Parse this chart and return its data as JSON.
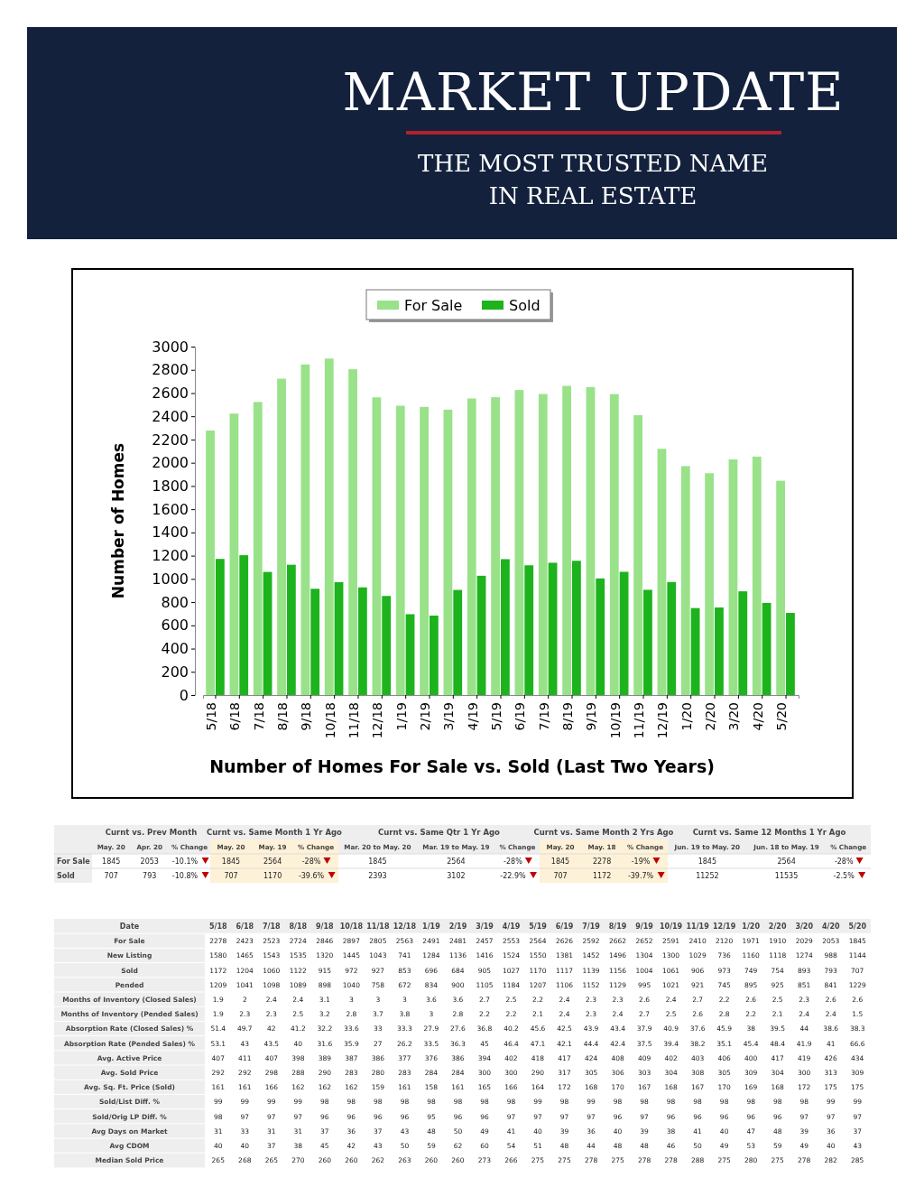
{
  "chart_data": [
    {
      "type": "other",
      "title": "MARKET UPDATE",
      "subtitle": "THE MOST TRUSTED NAME IN REAL ESTATE"
    },
    {
      "type": "bar",
      "title": "Number of Homes For Sale vs. Sold (Last Two Years)",
      "ylabel": "Number of Homes",
      "categories": [
        "5/18",
        "6/18",
        "7/18",
        "8/18",
        "9/18",
        "10/18",
        "11/18",
        "12/18",
        "1/19",
        "2/19",
        "3/19",
        "4/19",
        "5/19",
        "6/19",
        "7/19",
        "8/19",
        "9/19",
        "10/19",
        "11/19",
        "12/19",
        "1/20",
        "2/20",
        "3/20",
        "4/20",
        "5/20"
      ],
      "series": [
        {
          "name": "For Sale",
          "color": "#99e28a",
          "values": [
            2278,
            2423,
            2523,
            2724,
            2846,
            2897,
            2805,
            2563,
            2491,
            2481,
            2457,
            2553,
            2564,
            2626,
            2592,
            2662,
            2652,
            2591,
            2410,
            2120,
            1971,
            1910,
            2029,
            2053,
            1845
          ]
        },
        {
          "name": "Sold",
          "color": "#1db31d",
          "values": [
            1172,
            1204,
            1060,
            1122,
            915,
            972,
            927,
            853,
            696,
            684,
            905,
            1027,
            1170,
            1117,
            1139,
            1156,
            1004,
            1061,
            906,
            973,
            749,
            754,
            893,
            793,
            707
          ]
        }
      ],
      "ylim": [
        0,
        3000
      ],
      "yticks": [
        0,
        200,
        400,
        600,
        800,
        1000,
        1200,
        1400,
        1600,
        1800,
        2000,
        2200,
        2400,
        2600,
        2800,
        3000
      ],
      "legend": "top"
    },
    {
      "type": "other",
      "categories": [
        "May. 20",
        "Apr. 20",
        "% Change",
        "May. 20",
        "May. 19",
        "% Change",
        "Mar. 20 to May. 20",
        "Mar. 19 to May. 19",
        "% Change",
        "May. 20",
        "May. 18",
        "% Change",
        "Jun. 19 to May. 20",
        "Jun. 18 to May. 19",
        "% Change"
      ],
      "annotations": [
        "Curnt vs. Prev Month",
        "Curnt vs. Same Month 1 Yr Ago",
        "Curnt vs. Same Qtr 1 Yr Ago",
        "Curnt vs. Same Month 2 Yrs Ago",
        "Curnt vs. Same 12 Months 1 Yr Ago"
      ],
      "series": [
        {
          "name": "For Sale",
          "values": [
            1845,
            2053,
            -10.1,
            1845,
            2564,
            -28,
            1845,
            2564,
            -28,
            1845,
            2278,
            -19,
            1845,
            2564,
            -28
          ],
          "value_labels": [
            "1845",
            "2053",
            "-10.1%",
            "1845",
            "2564",
            "-28%",
            "1845",
            "2564",
            "-28%",
            "1845",
            "2278",
            "-19%",
            "1845",
            "2564",
            "-28%"
          ]
        },
        {
          "name": "Sold",
          "values": [
            707,
            793,
            -10.8,
            707,
            1170,
            -39.6,
            2393,
            3102,
            -22.9,
            707,
            1172,
            -39.7,
            11252,
            11535,
            -2.5
          ],
          "value_labels": [
            "707",
            "793",
            "-10.8%",
            "707",
            "1170",
            "-39.6%",
            "2393",
            "3102",
            "-22.9%",
            "707",
            "1172",
            "-39.7%",
            "11252",
            "11535",
            "-2.5%"
          ]
        }
      ]
    },
    {
      "type": "other",
      "xlabel": "Date",
      "data_labels": true,
      "categories": [
        "5/18",
        "6/18",
        "7/18",
        "8/18",
        "9/18",
        "10/18",
        "11/18",
        "12/18",
        "1/19",
        "2/19",
        "3/19",
        "4/19",
        "5/19",
        "6/19",
        "7/19",
        "8/19",
        "9/19",
        "10/19",
        "11/19",
        "12/19",
        "1/20",
        "2/20",
        "3/20",
        "4/20",
        "5/20"
      ],
      "series": [
        {
          "name": "For Sale",
          "values": [
            2278,
            2423,
            2523,
            2724,
            2846,
            2897,
            2805,
            2563,
            2491,
            2481,
            2457,
            2553,
            2564,
            2626,
            2592,
            2662,
            2652,
            2591,
            2410,
            2120,
            1971,
            1910,
            2029,
            2053,
            1845
          ]
        },
        {
          "name": "New Listing",
          "values": [
            1580,
            1465,
            1543,
            1535,
            1320,
            1445,
            1043,
            741,
            1284,
            1136,
            1416,
            1524,
            1550,
            1381,
            1452,
            1496,
            1304,
            1300,
            1029,
            736,
            1160,
            1118,
            1274,
            988,
            1144
          ]
        },
        {
          "name": "Sold",
          "values": [
            1172,
            1204,
            1060,
            1122,
            915,
            972,
            927,
            853,
            696,
            684,
            905,
            1027,
            1170,
            1117,
            1139,
            1156,
            1004,
            1061,
            906,
            973,
            749,
            754,
            893,
            793,
            707
          ]
        },
        {
          "name": "Pended",
          "values": [
            1209,
            1041,
            1098,
            1089,
            898,
            1040,
            758,
            672,
            834,
            900,
            1105,
            1184,
            1207,
            1106,
            1152,
            1129,
            995,
            1021,
            921,
            745,
            895,
            925,
            851,
            841,
            1229
          ]
        },
        {
          "name": "Months of Inventory (Closed Sales)",
          "values": [
            1.9,
            2,
            2.4,
            2.4,
            3.1,
            3,
            3,
            3,
            3.6,
            3.6,
            2.7,
            2.5,
            2.2,
            2.4,
            2.3,
            2.3,
            2.6,
            2.4,
            2.7,
            2.2,
            2.6,
            2.5,
            2.3,
            2.6,
            2.6
          ]
        },
        {
          "name": "Months of Inventory (Pended Sales)",
          "values": [
            1.9,
            2.3,
            2.3,
            2.5,
            3.2,
            2.8,
            3.7,
            3.8,
            3,
            2.8,
            2.2,
            2.2,
            2.1,
            2.4,
            2.3,
            2.4,
            2.7,
            2.5,
            2.6,
            2.8,
            2.2,
            2.1,
            2.4,
            2.4,
            1.5
          ]
        },
        {
          "name": "Absorption Rate (Closed Sales) %",
          "values": [
            51.4,
            49.7,
            42,
            41.2,
            32.2,
            33.6,
            33,
            33.3,
            27.9,
            27.6,
            36.8,
            40.2,
            45.6,
            42.5,
            43.9,
            43.4,
            37.9,
            40.9,
            37.6,
            45.9,
            38,
            39.5,
            44,
            38.6,
            38.3
          ]
        },
        {
          "name": "Absorption Rate (Pended Sales) %",
          "values": [
            53.1,
            43,
            43.5,
            40,
            31.6,
            35.9,
            27,
            26.2,
            33.5,
            36.3,
            45,
            46.4,
            47.1,
            42.1,
            44.4,
            42.4,
            37.5,
            39.4,
            38.2,
            35.1,
            45.4,
            48.4,
            41.9,
            41,
            66.6
          ]
        },
        {
          "name": "Avg. Active Price",
          "values": [
            407,
            411,
            407,
            398,
            389,
            387,
            386,
            377,
            376,
            386,
            394,
            402,
            418,
            417,
            424,
            408,
            409,
            402,
            403,
            406,
            400,
            417,
            419,
            426,
            434
          ]
        },
        {
          "name": "Avg. Sold Price",
          "values": [
            292,
            292,
            298,
            288,
            290,
            283,
            280,
            283,
            284,
            284,
            300,
            300,
            290,
            317,
            305,
            306,
            303,
            304,
            308,
            305,
            309,
            304,
            300,
            313,
            309
          ]
        },
        {
          "name": "Avg. Sq. Ft. Price (Sold)",
          "values": [
            161,
            161,
            166,
            162,
            162,
            162,
            159,
            161,
            158,
            161,
            165,
            166,
            164,
            172,
            168,
            170,
            167,
            168,
            167,
            170,
            169,
            168,
            172,
            175,
            175
          ]
        },
        {
          "name": "Sold/List Diff. %",
          "values": [
            99,
            99,
            99,
            99,
            98,
            98,
            98,
            98,
            98,
            98,
            98,
            98,
            99,
            98,
            99,
            98,
            98,
            98,
            98,
            98,
            98,
            98,
            98,
            99,
            99
          ]
        },
        {
          "name": "Sold/Orig LP Diff. %",
          "values": [
            98,
            97,
            97,
            97,
            96,
            96,
            96,
            96,
            95,
            96,
            96,
            97,
            97,
            97,
            97,
            96,
            97,
            96,
            96,
            96,
            96,
            96,
            97,
            97,
            97
          ]
        },
        {
          "name": "Avg Days on Market",
          "values": [
            31,
            33,
            31,
            31,
            37,
            36,
            37,
            43,
            48,
            50,
            49,
            41,
            40,
            39,
            36,
            40,
            39,
            38,
            41,
            40,
            47,
            48,
            39,
            36,
            37
          ]
        },
        {
          "name": "Avg CDOM",
          "values": [
            40,
            40,
            37,
            38,
            45,
            42,
            43,
            50,
            59,
            62,
            60,
            54,
            51,
            48,
            44,
            48,
            48,
            46,
            50,
            49,
            53,
            59,
            49,
            40,
            43
          ]
        },
        {
          "name": "Median Sold Price",
          "values": [
            265,
            268,
            265,
            270,
            260,
            260,
            262,
            263,
            260,
            260,
            273,
            266,
            275,
            275,
            278,
            275,
            278,
            278,
            288,
            275,
            280,
            275,
            278,
            282,
            285
          ]
        }
      ]
    }
  ]
}
